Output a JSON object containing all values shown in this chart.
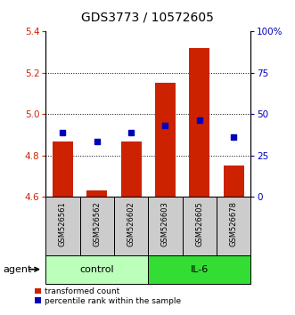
{
  "title": "GDS3773 / 10572605",
  "samples": [
    "GSM526561",
    "GSM526562",
    "GSM526602",
    "GSM526603",
    "GSM526605",
    "GSM526678"
  ],
  "red_bar_values": [
    4.87,
    4.63,
    4.87,
    5.15,
    5.32,
    4.75
  ],
  "blue_square_values": [
    4.91,
    4.87,
    4.91,
    4.945,
    4.97,
    4.89
  ],
  "ylim_left": [
    4.6,
    5.4
  ],
  "ylim_right": [
    0,
    100
  ],
  "yticks_left": [
    4.6,
    4.8,
    5.0,
    5.2,
    5.4
  ],
  "yticks_right": [
    0,
    25,
    50,
    75,
    100
  ],
  "ytick_labels_right": [
    "0",
    "25",
    "50",
    "75",
    "100%"
  ],
  "groups": [
    {
      "label": "control",
      "indices": [
        0,
        1,
        2
      ],
      "color": "#bbffbb"
    },
    {
      "label": "IL-6",
      "indices": [
        3,
        4,
        5
      ],
      "color": "#33dd33"
    }
  ],
  "bar_bottom": 4.6,
  "bar_color": "#cc2200",
  "square_color": "#0000bb",
  "legend_red_label": "transformed count",
  "legend_blue_label": "percentile rank within the sample",
  "agent_label": "agent",
  "title_fontsize": 10,
  "tick_fontsize": 7.5,
  "sample_fontsize": 6.0,
  "group_fontsize": 8.0,
  "legend_fontsize": 6.5,
  "agent_fontsize": 8.0
}
